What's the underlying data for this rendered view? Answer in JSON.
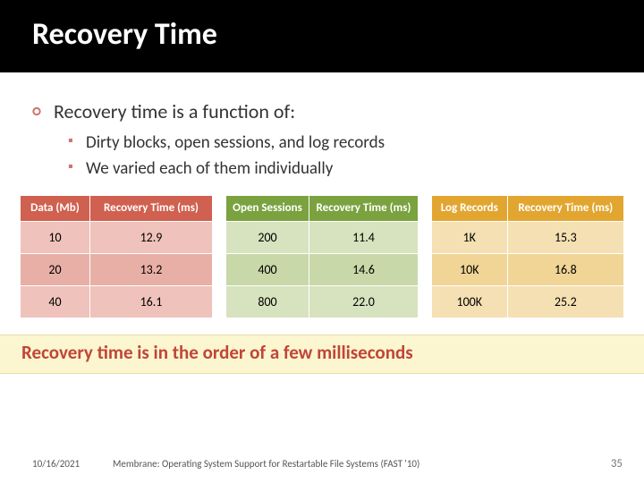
{
  "slide": {
    "title": "Recovery Time",
    "bullets": {
      "b1": "Recovery time is a function of:",
      "b2a": "Dirty blocks, open sessions, and log records",
      "b2b": "We varied each of them individually"
    },
    "callout": "Recovery time is in the order of a few milliseconds"
  },
  "tables": {
    "t1": {
      "headers": [
        "Data (Mb)",
        "Recovery Time (ms)"
      ],
      "rows": [
        [
          "10",
          "12.9"
        ],
        [
          "20",
          "13.2"
        ],
        [
          "40",
          "16.1"
        ]
      ],
      "header_color": "#d0604f",
      "row_colors": [
        "#efc2bb",
        "#e8afa6",
        "#efc2bb"
      ]
    },
    "t2": {
      "headers": [
        "Open Sessions",
        "Recovery Time (ms)"
      ],
      "rows": [
        [
          "200",
          "11.4"
        ],
        [
          "400",
          "14.6"
        ],
        [
          "800",
          "22.0"
        ]
      ],
      "header_color": "#7aa23f",
      "row_colors": [
        "#d7e2bf",
        "#c8d8a8",
        "#d7e2bf"
      ]
    },
    "t3": {
      "headers": [
        "Log Records",
        "Recovery Time (ms)"
      ],
      "rows": [
        [
          "1K",
          "15.3"
        ],
        [
          "10K",
          "16.8"
        ],
        [
          "100K",
          "25.2"
        ]
      ],
      "header_color": "#e2a630",
      "row_colors": [
        "#f5e0b3",
        "#f0d597",
        "#f5e0b3"
      ]
    }
  },
  "footer": {
    "date": "10/16/2021",
    "title": "Membrane: Operating System Support for Restartable File Systems (FAST '10)",
    "page": "35"
  }
}
